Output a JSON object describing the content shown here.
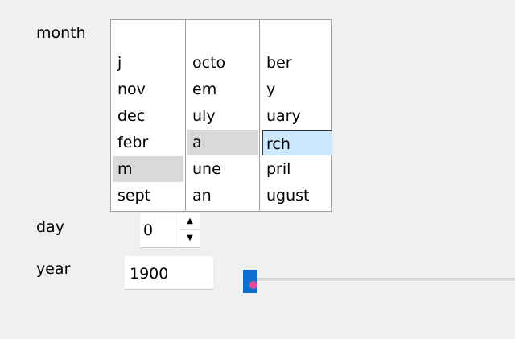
{
  "labels": {
    "month": "month",
    "day": "day",
    "year": "year"
  },
  "month_list": {
    "columns": [
      [
        "j",
        "nov",
        "dec",
        "febr",
        "m",
        "sept"
      ],
      [
        "octo",
        "em",
        "uly",
        "a",
        "une",
        "an"
      ],
      [
        "ber",
        "y",
        "uary",
        "rch",
        "pril",
        "ugust"
      ]
    ],
    "selected": [
      {
        "col": 0,
        "row": 4,
        "style": "grey"
      },
      {
        "col": 1,
        "row": 3,
        "style": "grey"
      },
      {
        "col": 2,
        "row": 3,
        "style": "focused"
      }
    ]
  },
  "day": {
    "value": "0",
    "up_icon": "triangle-up",
    "down_icon": "triangle-down"
  },
  "year": {
    "value": "1900",
    "slider_value": 1900
  },
  "colors": {
    "slider_handle": "#0f6fd1",
    "selection": "#cce8ff",
    "cursor_dot": "#e84a9a"
  }
}
